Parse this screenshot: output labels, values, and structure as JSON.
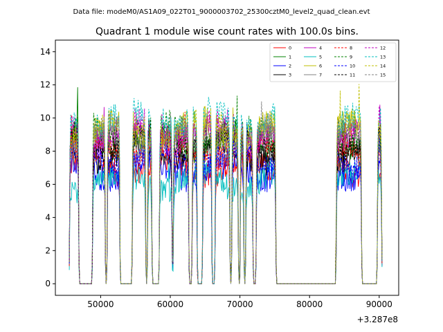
{
  "figure": {
    "suptitle": "Data file: modeM0/AS1A09_022T01_9000003702_25300cztM0_level2_quad_clean.evt",
    "title": "Quadrant 1 module wise count rates with 100.0s bins."
  },
  "chart_data": {
    "type": "line",
    "title": "Quadrant 1 module wise count rates with 100.0s bins.",
    "xlabel": "",
    "ylabel": "",
    "x_offset_label": "+3.287e8",
    "xlim": [
      43500,
      92800
    ],
    "ylim": [
      -0.7,
      14.7
    ],
    "xticks": [
      50000,
      60000,
      70000,
      80000,
      90000
    ],
    "yticks": [
      0,
      2,
      4,
      6,
      8,
      10,
      12,
      14
    ],
    "bin_seconds": 100,
    "gti_segments": [
      [
        45500,
        46900
      ],
      [
        48800,
        50700
      ],
      [
        50900,
        52800
      ],
      [
        54500,
        56500
      ],
      [
        56700,
        57400
      ],
      [
        58400,
        60300
      ],
      [
        60400,
        62700
      ],
      [
        63100,
        63900
      ],
      [
        64600,
        66000
      ],
      [
        66400,
        68600
      ],
      [
        68800,
        69800
      ],
      [
        70000,
        70600
      ],
      [
        70800,
        71900
      ],
      [
        72300,
        75200
      ],
      [
        83800,
        87500
      ],
      [
        89700,
        90400
      ]
    ],
    "series": [
      {
        "name": "0",
        "level": 7.0,
        "color": "#ff0000",
        "dash": "solid"
      },
      {
        "name": "1",
        "level": 8.6,
        "color": "#008000",
        "dash": "solid"
      },
      {
        "name": "2",
        "level": 6.9,
        "color": "#0000ff",
        "dash": "solid"
      },
      {
        "name": "3",
        "level": 8.0,
        "color": "#000000",
        "dash": "solid"
      },
      {
        "name": "4",
        "level": 8.9,
        "color": "#bf00bf",
        "dash": "solid"
      },
      {
        "name": "5",
        "level": 6.2,
        "color": "#00bfbf",
        "dash": "solid"
      },
      {
        "name": "6",
        "level": 9.1,
        "color": "#bfbf00",
        "dash": "solid"
      },
      {
        "name": "7",
        "level": 8.4,
        "color": "#808080",
        "dash": "solid"
      },
      {
        "name": "8",
        "level": 8.1,
        "color": "#ff0000",
        "dash": "dashed"
      },
      {
        "name": "9",
        "level": 9.1,
        "color": "#008000",
        "dash": "dashed"
      },
      {
        "name": "10",
        "level": 7.6,
        "color": "#0000ff",
        "dash": "dashed"
      },
      {
        "name": "11",
        "level": 8.7,
        "color": "#000000",
        "dash": "dashed"
      },
      {
        "name": "12",
        "level": 9.3,
        "color": "#bf00bf",
        "dash": "dashed"
      },
      {
        "name": "13",
        "level": 9.9,
        "color": "#00bfbf",
        "dash": "dashed"
      },
      {
        "name": "14",
        "level": 9.4,
        "color": "#bfbf00",
        "dash": "dashed"
      },
      {
        "name": "15",
        "level": 8.9,
        "color": "#808080",
        "dash": "dashed"
      }
    ]
  }
}
